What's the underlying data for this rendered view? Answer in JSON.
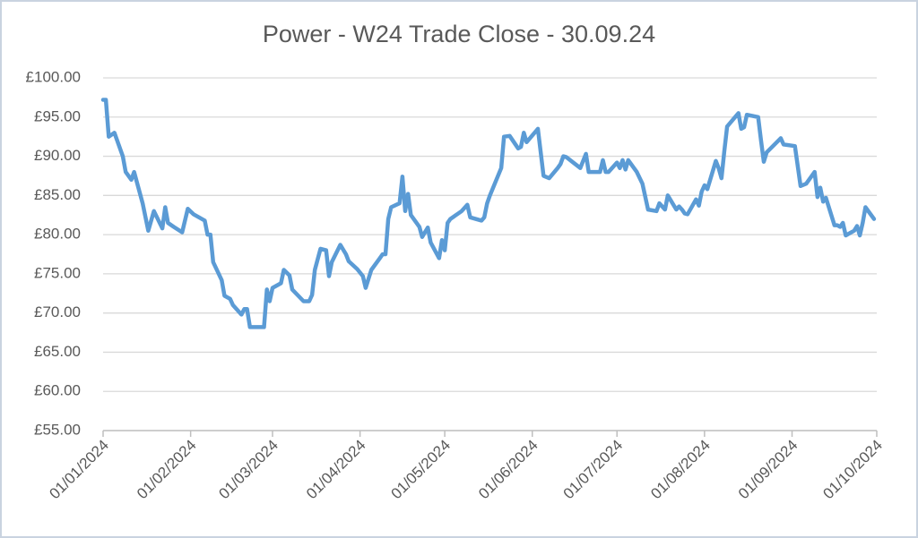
{
  "chart_data": {
    "type": "line",
    "title": "Power - W24 Trade Close - 30.09.24",
    "x": [
      "01/01/2024",
      "02/01/2024",
      "03/01/2024",
      "05/01/2024",
      "08/01/2024",
      "09/01/2024",
      "11/01/2024",
      "12/01/2024",
      "15/01/2024",
      "17/01/2024",
      "19/01/2024",
      "22/01/2024",
      "23/01/2024",
      "24/01/2024",
      "26/01/2024",
      "29/01/2024",
      "31/01/2024",
      "02/02/2024",
      "06/02/2024",
      "07/02/2024",
      "08/02/2024",
      "09/02/2024",
      "12/02/2024",
      "13/02/2024",
      "15/02/2024",
      "16/02/2024",
      "19/02/2024",
      "20/02/2024",
      "21/02/2024",
      "22/02/2024",
      "27/02/2024",
      "28/02/2024",
      "29/02/2024",
      "01/03/2024",
      "04/03/2024",
      "05/03/2024",
      "07/03/2024",
      "08/03/2024",
      "12/03/2024",
      "14/03/2024",
      "15/03/2024",
      "16/03/2024",
      "18/03/2024",
      "20/03/2024",
      "21/03/2024",
      "22/03/2024",
      "25/03/2024",
      "27/03/2024",
      "28/03/2024",
      "31/03/2024",
      "02/04/2024",
      "03/04/2024",
      "05/04/2024",
      "08/04/2024",
      "09/04/2024",
      "10/04/2024",
      "11/04/2024",
      "12/04/2024",
      "15/04/2024",
      "16/04/2024",
      "17/04/2024",
      "18/04/2024",
      "19/04/2024",
      "22/04/2024",
      "23/04/2024",
      "25/04/2024",
      "26/04/2024",
      "29/04/2024",
      "30/04/2024",
      "01/05/2024",
      "02/05/2024",
      "03/05/2024",
      "07/05/2024",
      "09/05/2024",
      "10/05/2024",
      "14/05/2024",
      "15/05/2024",
      "16/05/2024",
      "17/05/2024",
      "21/05/2024",
      "22/05/2024",
      "24/05/2024",
      "27/05/2024",
      "28/05/2024",
      "29/05/2024",
      "30/05/2024",
      "03/06/2024",
      "05/06/2024",
      "07/06/2024",
      "10/06/2024",
      "11/06/2024",
      "12/06/2024",
      "13/06/2024",
      "18/06/2024",
      "20/06/2024",
      "21/06/2024",
      "25/06/2024",
      "26/06/2024",
      "27/06/2024",
      "28/06/2024",
      "01/07/2024",
      "02/07/2024",
      "03/07/2024",
      "04/07/2024",
      "05/07/2024",
      "08/07/2024",
      "10/07/2024",
      "12/07/2024",
      "15/07/2024",
      "16/07/2024",
      "18/07/2024",
      "19/07/2024",
      "22/07/2024",
      "23/07/2024",
      "24/07/2024",
      "25/07/2024",
      "26/07/2024",
      "29/07/2024",
      "30/07/2024",
      "31/07/2024",
      "01/08/2024",
      "02/08/2024",
      "05/08/2024",
      "06/08/2024",
      "07/08/2024",
      "08/08/2024",
      "09/08/2024",
      "13/08/2024",
      "14/08/2024",
      "15/08/2024",
      "16/08/2024",
      "20/08/2024",
      "21/08/2024",
      "22/08/2024",
      "23/08/2024",
      "28/08/2024",
      "29/08/2024",
      "02/09/2024",
      "04/09/2024",
      "06/09/2024",
      "09/09/2024",
      "10/09/2024",
      "11/09/2024",
      "12/09/2024",
      "13/09/2024",
      "16/09/2024",
      "17/09/2024",
      "18/09/2024",
      "19/09/2024",
      "20/09/2024",
      "23/09/2024",
      "24/09/2024",
      "25/09/2024",
      "26/09/2024",
      "27/09/2024",
      "30/09/2024"
    ],
    "series": [
      {
        "color": "#5b9bd5",
        "values": [
          97.2,
          97.2,
          92.5,
          93,
          90,
          88,
          87,
          88,
          84,
          80.5,
          83,
          80.8,
          83.5,
          81.5,
          81,
          80.3,
          83.3,
          82.6,
          81.8,
          80,
          80,
          76.5,
          74.2,
          72.2,
          71.8,
          71,
          69.8,
          70.5,
          70.5,
          68.2,
          68.2,
          73,
          71.5,
          73.2,
          73.8,
          75.5,
          74.8,
          73,
          71.5,
          71.5,
          72.3,
          75.5,
          78.2,
          78,
          74.7,
          76.5,
          78.7,
          77.5,
          76.6,
          75.6,
          74.7,
          73.2,
          75.5,
          77,
          77.5,
          77.5,
          82,
          83.5,
          84,
          87.4,
          83,
          85.2,
          82.5,
          81,
          79.7,
          80.9,
          79,
          77,
          79.3,
          78,
          81.5,
          82,
          83,
          83.8,
          82.2,
          81.8,
          82.2,
          84,
          85,
          88.5,
          92.5,
          92.6,
          91,
          91.2,
          93,
          91.8,
          93.5,
          87.5,
          87.2,
          88.5,
          89,
          90,
          89.9,
          88.5,
          90.3,
          88,
          88,
          89.5,
          88,
          88,
          89.2,
          88.5,
          89.5,
          88.3,
          89.5,
          88,
          86.5,
          83.2,
          83,
          84,
          83.2,
          85,
          83.2,
          83.6,
          83.2,
          82.7,
          82.6,
          84.5,
          83.7,
          85.5,
          86.3,
          85.8,
          89.4,
          88.5,
          87.2,
          90.6,
          93.8,
          95.5,
          93.5,
          93.7,
          95.3,
          95,
          92,
          89.3,
          90.5,
          92.3,
          91.5,
          91.3,
          86.2,
          86.5,
          88,
          84.8,
          86,
          84.2,
          84.7,
          81.2,
          81.2,
          81,
          81.5,
          79.9,
          80.5,
          81.1,
          79.9,
          81.5,
          83.5,
          82
        ]
      }
    ],
    "xlim": [
      "01/01/2024",
      "01/10/2024"
    ],
    "xticks": [
      "01/01/2024",
      "01/02/2024",
      "01/03/2024",
      "01/04/2024",
      "01/05/2024",
      "01/06/2024",
      "01/07/2024",
      "01/08/2024",
      "01/09/2024",
      "01/10/2024"
    ],
    "ylim": [
      55,
      100
    ],
    "yticks": [
      {
        "value": 55,
        "label": "£55.00"
      },
      {
        "value": 60,
        "label": "£60.00"
      },
      {
        "value": 65,
        "label": "£65.00"
      },
      {
        "value": 70,
        "label": "£70.00"
      },
      {
        "value": 75,
        "label": "£75.00"
      },
      {
        "value": 80,
        "label": "£80.00"
      },
      {
        "value": 85,
        "label": "£85.00"
      },
      {
        "value": 90,
        "label": "£90.00"
      },
      {
        "value": 95,
        "label": "£95.00"
      },
      {
        "value": 100,
        "label": "£100.00"
      }
    ],
    "grid": true
  }
}
